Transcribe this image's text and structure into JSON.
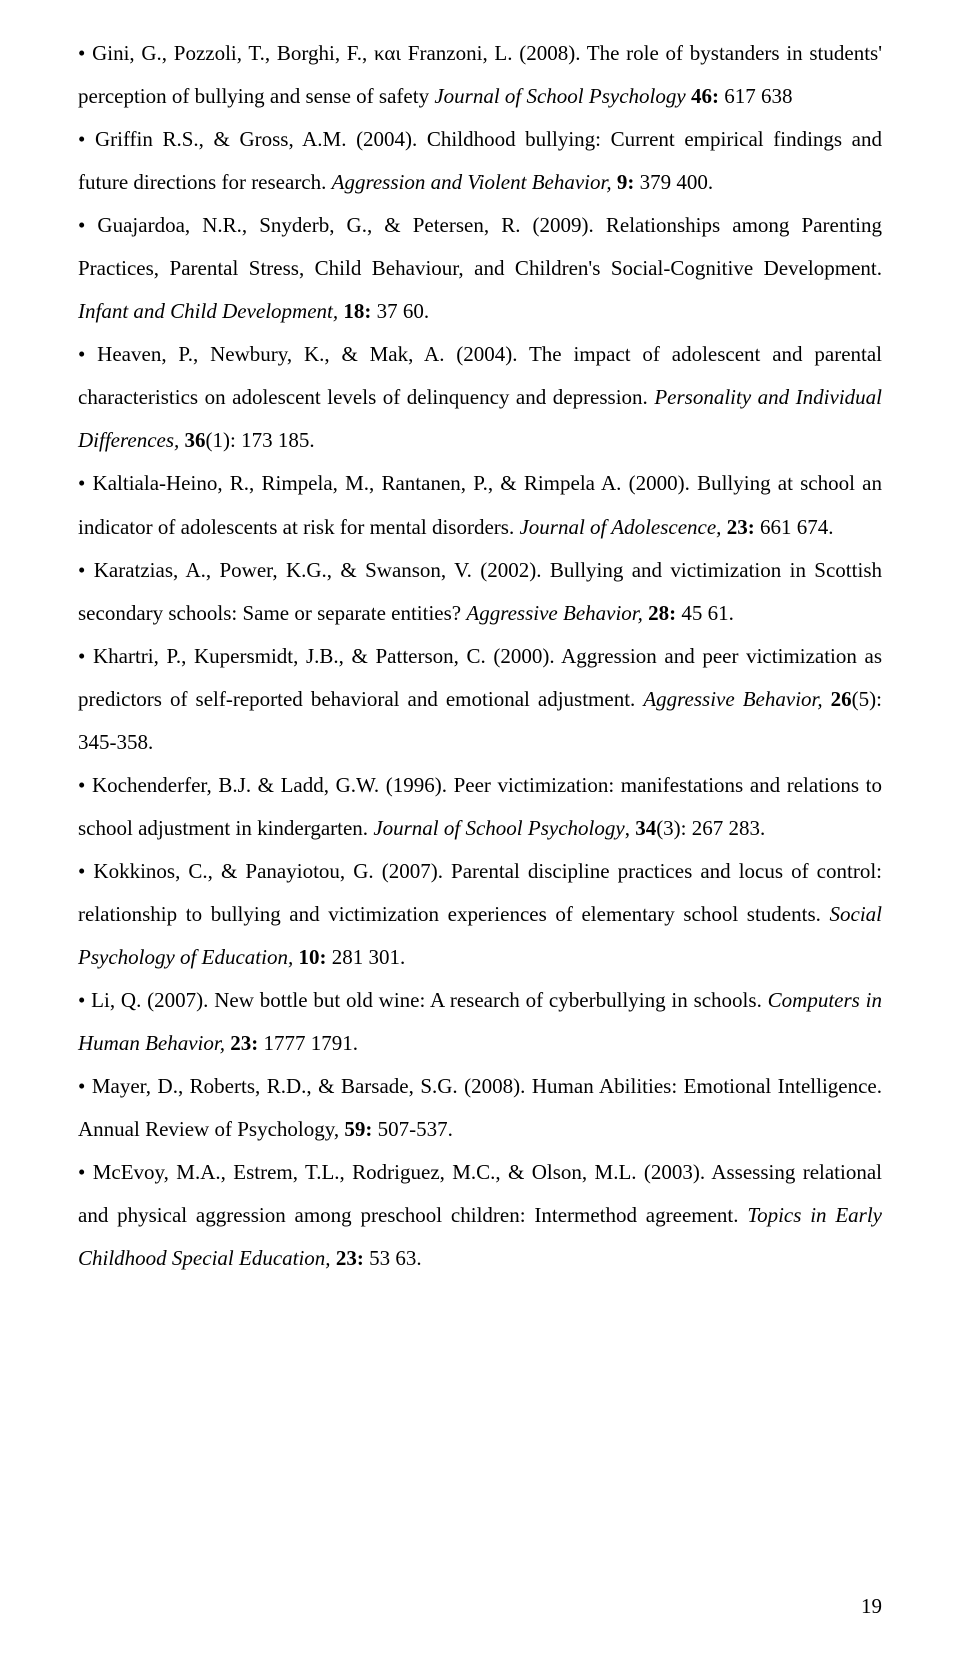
{
  "references": [
    {
      "text_parts": [
        {
          "text": "• Gini, G., Pozzoli, T., Borghi, F., και Franzoni, L. (2008). The role of bystanders in students' perception of bullying and sense of safety ",
          "style": "normal"
        },
        {
          "text": "Journal of School Psychology ",
          "style": "italic"
        },
        {
          "text": "46:",
          "style": "bold"
        },
        {
          "text": " 617 638",
          "style": "normal"
        }
      ]
    },
    {
      "text_parts": [
        {
          "text": "• Griffin R.S., & Gross, A.M. (2004). Childhood bullying: Current empirical findings and future directions for research. ",
          "style": "normal"
        },
        {
          "text": "Aggression and Violent Behavior, ",
          "style": "italic"
        },
        {
          "text": "9:",
          "style": "bold"
        },
        {
          "text": " 379 400.",
          "style": "normal"
        }
      ]
    },
    {
      "text_parts": [
        {
          "text": "• Guajardoa, N.R., Snyderb, G., & Petersen, R. (2009). Relationships among Parenting Practices, Parental Stress, Child Behaviour, and Children's Social-Cognitive Development. ",
          "style": "normal"
        },
        {
          "text": "Infant and Child Development, ",
          "style": "italic"
        },
        {
          "text": "18:",
          "style": "bold"
        },
        {
          "text": " 37 60.",
          "style": "normal"
        }
      ]
    },
    {
      "text_parts": [
        {
          "text": "• Heaven, P., Newbury, K., & Mak, A. (2004). The impact of adolescent and parental characteristics on adolescent levels of delinquency and depression. ",
          "style": "normal"
        },
        {
          "text": "Personality and Individual Differences, ",
          "style": "italic"
        },
        {
          "text": "36",
          "style": "bold"
        },
        {
          "text": "(1): 173 185.",
          "style": "normal"
        }
      ]
    },
    {
      "text_parts": [
        {
          "text": "• Kaltiala-Heino, R., Rimpela, M., Rantanen, P., & Rimpela A. (2000). Bullying at school an indicator of adolescents at risk for mental disorders. ",
          "style": "normal"
        },
        {
          "text": "Journal of Adolescence, ",
          "style": "italic"
        },
        {
          "text": "23:",
          "style": "bold"
        },
        {
          "text": " 661 674.",
          "style": "normal"
        }
      ]
    },
    {
      "text_parts": [
        {
          "text": "• Karatzias, A., Power, K.G., & Swanson, V. (2002). Bullying and victimization in Scottish secondary schools: Same or separate entities? ",
          "style": "normal"
        },
        {
          "text": "Aggressive Behavior, ",
          "style": "italic"
        },
        {
          "text": "28:",
          "style": "bold"
        },
        {
          "text": " 45 61.",
          "style": "normal"
        }
      ]
    },
    {
      "text_parts": [
        {
          "text": "• Khartri, P., Kupersmidt, J.B., & Patterson, C. (2000). Aggression and peer victimization as predictors of self-reported behavioral and emotional adjustment. ",
          "style": "normal"
        },
        {
          "text": "Aggressive Behavior, ",
          "style": "italic"
        },
        {
          "text": "26",
          "style": "bold"
        },
        {
          "text": "(5): 345-358.",
          "style": "normal"
        }
      ]
    },
    {
      "text_parts": [
        {
          "text": "• Kochenderfer, B.J. & Ladd, G.W. (1996). Peer victimization: manifestations and relations to school adjustment in kindergarten. ",
          "style": "normal"
        },
        {
          "text": "Journal of School Psychology",
          "style": "italic"
        },
        {
          "text": ", ",
          "style": "normal"
        },
        {
          "text": "34",
          "style": "bold"
        },
        {
          "text": "(3): 267 283.",
          "style": "normal"
        }
      ]
    },
    {
      "text_parts": [
        {
          "text": "• Kokkinos, C., & Panayiotou, G. (2007). Parental discipline practices and locus of control: relationship to bullying and victimization experiences of elementary school students. ",
          "style": "normal"
        },
        {
          "text": "Social Psychology of Education, ",
          "style": "italic"
        },
        {
          "text": "10:",
          "style": "bold"
        },
        {
          "text": " 281 301.",
          "style": "normal"
        }
      ]
    },
    {
      "text_parts": [
        {
          "text": "• Li, Q. (2007). New bottle but old wine: A research of cyberbullying in schools. ",
          "style": "normal"
        },
        {
          "text": "Computers in Human Behavior, ",
          "style": "italic"
        },
        {
          "text": "23:",
          "style": "bold"
        },
        {
          "text": " 1777 1791.",
          "style": "normal"
        }
      ]
    },
    {
      "text_parts": [
        {
          "text": "• Mayer, D., Roberts, R.D., & Barsade, S.G. (2008). Human Abilities: Emotional Intelligence. Annual Review of Psychology, ",
          "style": "normal"
        },
        {
          "text": "59:",
          "style": "bold"
        },
        {
          "text": " 507-537.",
          "style": "normal"
        }
      ]
    },
    {
      "text_parts": [
        {
          "text": "• McEvoy, M.A., Estrem, T.L., Rodriguez, M.C., & Olson, M.L. (2003). Assessing relational and physical aggression among preschool children: Intermethod agreement. ",
          "style": "normal"
        },
        {
          "text": "Topics in Early Childhood Special Education, ",
          "style": "italic"
        },
        {
          "text": "23:",
          "style": "bold"
        },
        {
          "text": " 53 63.",
          "style": "normal"
        }
      ]
    }
  ],
  "page_number": "19"
}
